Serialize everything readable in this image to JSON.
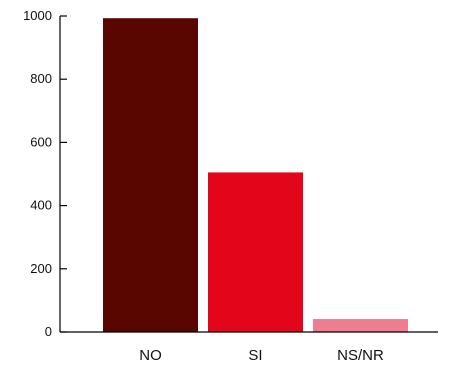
{
  "chart_data": {
    "type": "bar",
    "categories": [
      "NO",
      "SI",
      "NS/NR"
    ],
    "values": [
      993,
      505,
      41
    ],
    "colors": [
      "#5a0600",
      "#e3061a",
      "#ee7d8f"
    ],
    "title": "",
    "xlabel": "",
    "ylabel": "",
    "ylim": [
      0,
      1000
    ],
    "yticks": [
      0,
      200,
      400,
      600,
      800,
      1000
    ],
    "grid": false,
    "legend": "none"
  }
}
